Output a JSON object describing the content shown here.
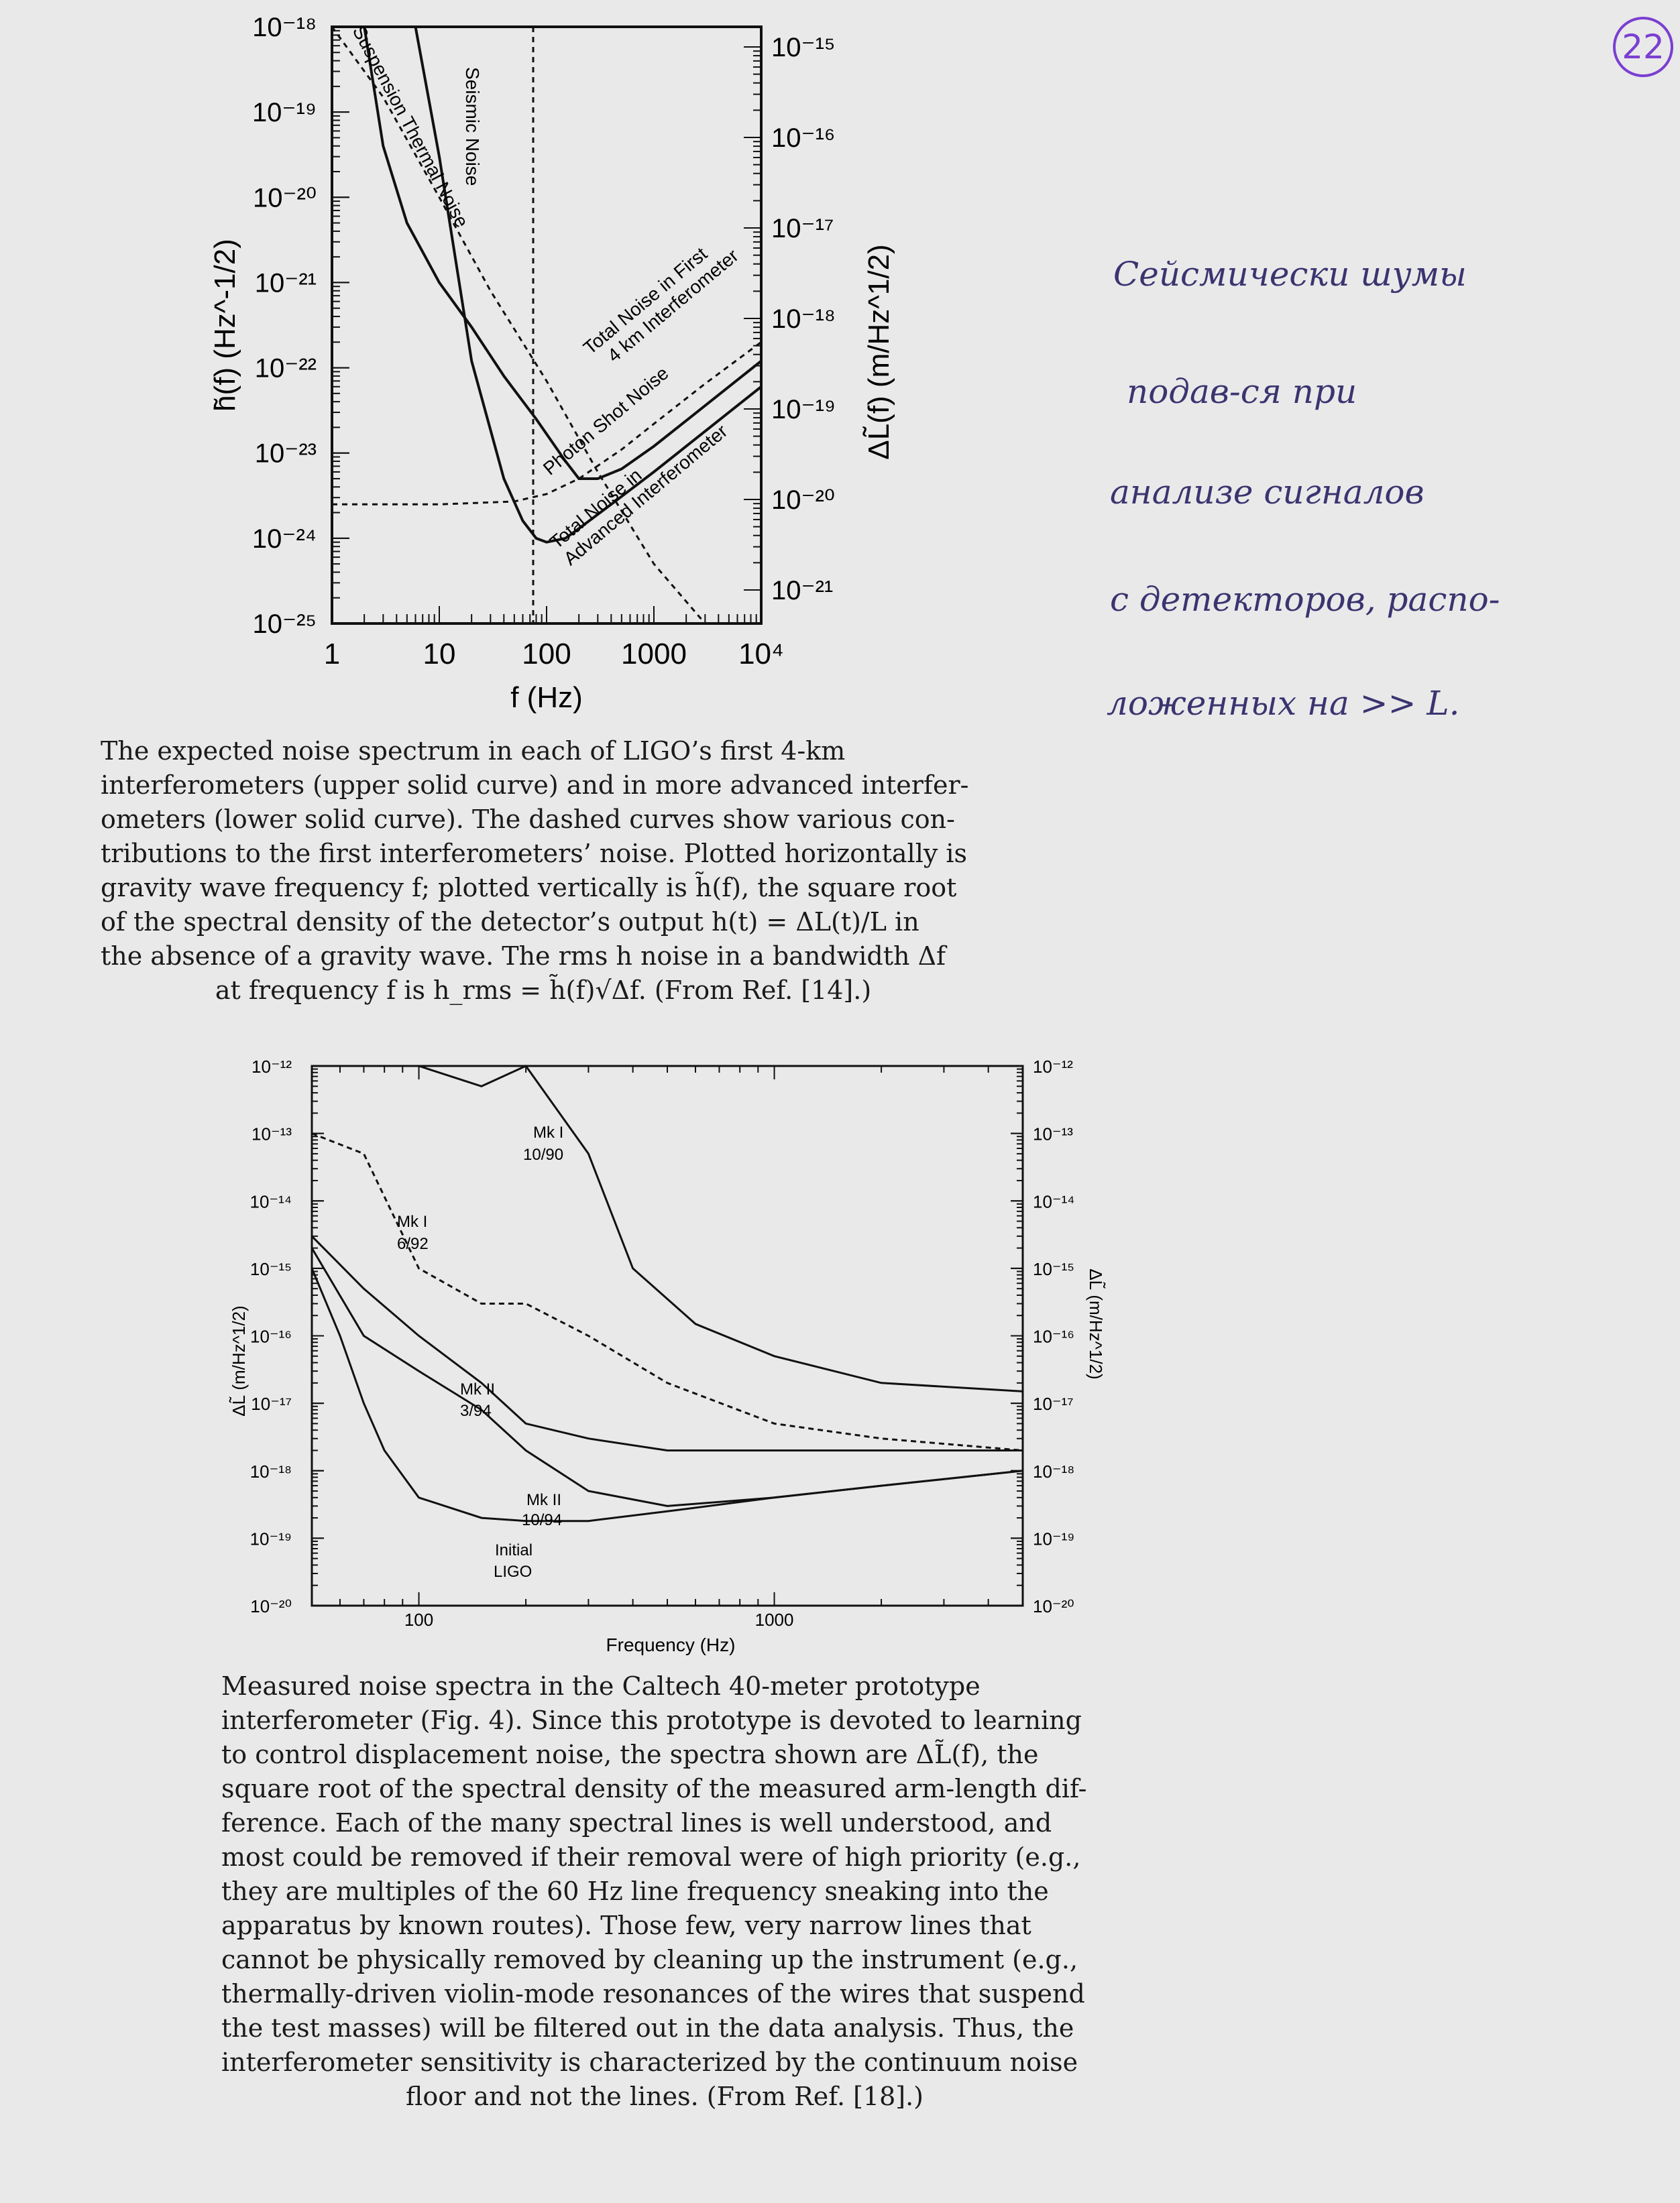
{
  "page_number": "22",
  "figure1": {
    "chart_data": {
      "type": "line",
      "xscale": "log",
      "yscale": "log",
      "xlabel": "f (Hz)",
      "ylabel_left": "h̃(f)  (Hz^-1/2)",
      "ylabel_right": "ΔL̃(f)  (m/Hz^1/2)",
      "xlim": [
        1,
        10000
      ],
      "ylim_left": [
        1e-25,
        1e-18
      ],
      "ylim_right": [
        1e-21,
        1e-15
      ],
      "x_ticks": [
        "1",
        "10",
        "100",
        "1000",
        "10⁴"
      ],
      "y_ticks_left": [
        "10⁻¹⁸",
        "10⁻¹⁹",
        "10⁻²⁰",
        "10⁻²¹",
        "10⁻²²",
        "10⁻²³",
        "10⁻²⁴",
        "10⁻²⁵"
      ],
      "y_ticks_right": [
        "10⁻¹⁵",
        "10⁻¹⁶",
        "10⁻¹⁷",
        "10⁻¹⁸",
        "10⁻¹⁹",
        "10⁻²⁰",
        "10⁻²¹"
      ],
      "series": [
        {
          "name": "Total Noise in First 4 km Interferometer",
          "style": "solid",
          "x": [
            2,
            3,
            5,
            10,
            20,
            40,
            80,
            150,
            200,
            300,
            500,
            1000,
            2000,
            5000,
            10000
          ],
          "y": [
            1e-18,
            4e-20,
            5e-21,
            1e-21,
            3e-22,
            8e-23,
            2.5e-23,
            8e-24,
            5e-24,
            5e-24,
            6.5e-24,
            1.2e-23,
            2.4e-23,
            6e-23,
            1.2e-22
          ]
        },
        {
          "name": "Total Noise in Advanced Interferometer",
          "style": "solid",
          "x": [
            6,
            10,
            20,
            40,
            60,
            80,
            100,
            150,
            200,
            400,
            1000,
            2000,
            5000,
            10000
          ],
          "y": [
            1e-18,
            3e-20,
            1.2e-22,
            5e-24,
            1.6e-24,
            1e-24,
            9e-25,
            1e-24,
            1.3e-24,
            2.5e-24,
            6e-24,
            1.2e-23,
            3e-23,
            6e-23
          ]
        },
        {
          "name": "Seismic Noise",
          "style": "dashed",
          "x": [
            75,
            75
          ],
          "y": [
            1e-18,
            1e-25
          ]
        },
        {
          "name": "Suspension Thermal Noise",
          "style": "dashed",
          "x": [
            1,
            3,
            10,
            30,
            100,
            300,
            1000,
            3000
          ],
          "y": [
            1e-18,
            1.5e-19,
            1e-20,
            8e-22,
            7e-23,
            6e-24,
            5e-25,
            1e-25
          ]
        },
        {
          "name": "Photon Shot Noise",
          "style": "dashed",
          "x": [
            1,
            10,
            50,
            100,
            200,
            500,
            1000,
            3000,
            10000
          ],
          "y": [
            2.5e-24,
            2.5e-24,
            2.7e-24,
            3.3e-24,
            5e-24,
            1.1e-23,
            2.2e-23,
            6.5e-23,
            2e-22
          ]
        }
      ]
    },
    "labels": {
      "suspension": "Suspension Thermal Noise",
      "seismic": "Seismic Noise",
      "total_first_l1": "Total Noise in First",
      "total_first_l2": "4 km Interferometer",
      "photon": "Photon Shot Noise",
      "total_adv_l1": "Total Noise in",
      "total_adv_l2": "Advanced Interferometer"
    },
    "caption_lines": [
      "The expected noise spectrum in each of LIGO’s first 4-km",
      "interferometers (upper solid curve) and in more advanced interfer-",
      "ometers (lower solid curve). The dashed curves show various con-",
      "tributions to the first interferometers’ noise. Plotted horizontally is",
      "gravity wave frequency f; plotted vertically is h̃(f), the square root",
      "of the spectral density of the detector’s output h(t) = ΔL(t)/L in",
      "the absence of a gravity wave. The rms h noise in a bandwidth Δf",
      "at frequency f is h_rms = h̃(f)√Δf. (From Ref. [14].)"
    ]
  },
  "figure2": {
    "chart_data": {
      "type": "line",
      "xscale": "log",
      "yscale": "log",
      "xlabel": "Frequency (Hz)",
      "ylabel_left": "ΔL̃ (m/Hz^1/2)",
      "ylabel_right": "ΔL̃ (m/Hz^1/2)",
      "xlim": [
        50,
        5000
      ],
      "ylim": [
        1e-20,
        1e-12
      ],
      "x_ticks": [
        "100",
        "1000"
      ],
      "y_ticks": [
        "10⁻¹²",
        "10⁻¹³",
        "10⁻¹⁴",
        "10⁻¹⁵",
        "10⁻¹⁶",
        "10⁻¹⁷",
        "10⁻¹⁸",
        "10⁻¹⁹",
        "10⁻²⁰"
      ],
      "series": [
        {
          "name": "Mk I 10/90",
          "style": "solid",
          "x": [
            50,
            100,
            150,
            200,
            300,
            400,
            600,
            1000,
            2000,
            5000
          ],
          "y": [
            1e-12,
            1e-12,
            5e-13,
            1e-12,
            5e-14,
            1e-15,
            1.5e-16,
            5e-17,
            2e-17,
            1.5e-17
          ]
        },
        {
          "name": "Mk I 6/92",
          "style": "dashed",
          "x": [
            50,
            70,
            100,
            150,
            200,
            300,
            500,
            1000,
            2000,
            5000
          ],
          "y": [
            1e-13,
            5e-14,
            1e-15,
            3e-16,
            3e-16,
            1e-16,
            2e-17,
            5e-18,
            3e-18,
            2e-18
          ]
        },
        {
          "name": "Mk II 3/94",
          "style": "solid",
          "x": [
            50,
            70,
            100,
            150,
            200,
            300,
            500,
            1000,
            2000,
            5000
          ],
          "y": [
            3e-15,
            5e-16,
            1e-16,
            2e-17,
            5e-18,
            3e-18,
            2e-18,
            2e-18,
            2e-18,
            2e-18
          ]
        },
        {
          "name": "Mk II 10/94",
          "style": "solid",
          "x": [
            50,
            70,
            100,
            150,
            200,
            300,
            500,
            1000,
            2000,
            5000
          ],
          "y": [
            2e-15,
            1e-16,
            3e-17,
            8e-18,
            2e-18,
            5e-19,
            3e-19,
            4e-19,
            6e-19,
            1e-18
          ]
        },
        {
          "name": "Initial LIGO",
          "style": "solid",
          "x": [
            50,
            60,
            70,
            80,
            100,
            150,
            200,
            300,
            500,
            1000,
            2000,
            5000
          ],
          "y": [
            1e-15,
            1e-16,
            1e-17,
            2e-18,
            4e-19,
            2e-19,
            1.8e-19,
            1.8e-19,
            2.5e-19,
            4e-19,
            6e-19,
            1e-18
          ]
        }
      ]
    },
    "labels": {
      "mk1_1090_l1": "Mk I",
      "mk1_1090_l2": "10/90",
      "mk1_692_l1": "Mk I",
      "mk1_692_l2": "6/92",
      "mk2_394_l1": "Mk II",
      "mk2_394_l2": "3/94",
      "mk2_1094_l1": "Mk II",
      "mk2_1094_l2": "10/94",
      "ligo_l1": "Initial",
      "ligo_l2": "LIGO"
    },
    "caption_lines": [
      "Measured noise spectra in the Caltech 40-meter prototype",
      "interferometer (Fig. 4). Since this prototype is devoted to learning",
      "to control displacement noise, the spectra shown are ΔL̃(f), the",
      "square root of the spectral density of the measured arm-length dif-",
      "ference. Each of the many spectral lines is well understood, and",
      "most could be removed if their removal were of high priority (e.g.,",
      "they are multiples of the 60 Hz line frequency sneaking into the",
      "apparatus by known routes). Those few, very narrow lines that",
      "cannot be physically removed by cleaning up the instrument (e.g.,",
      "thermally-driven violin-mode resonances of the wires that suspend",
      "the test masses) will be filtered out in the data analysis. Thus, the",
      "interferometer sensitivity is characterized by the continuum noise",
      "floor and not the lines. (From Ref. [18].)"
    ]
  },
  "handwritten_note": [
    "Сейсмически шумы",
    "подав-ся при",
    "анализе сигналов",
    "с детекторов, распо-",
    "ложенных на >> L."
  ]
}
